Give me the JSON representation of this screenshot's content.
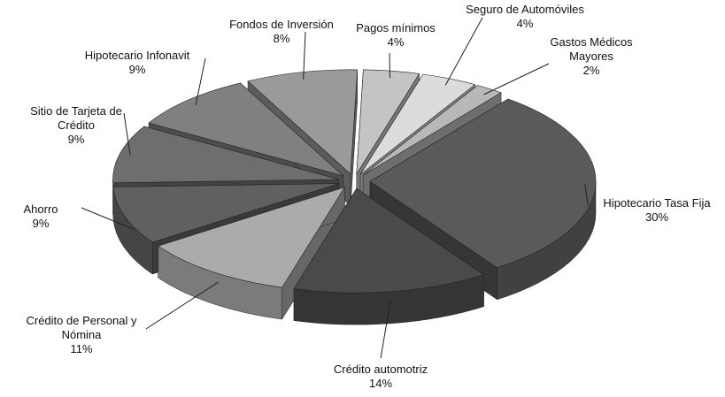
{
  "chart_data": {
    "type": "pie3d",
    "categories": [
      "Pagos mínimos",
      "Seguro de Automóviles",
      "Gastos Médicos Mayores",
      "Hipotecario Tasa Fija",
      "Crédito automotriz",
      "Crédito de Personal y Nómina",
      "Ahorro",
      "Sitio de Tarjeta de Crédito",
      "Hipotecario Infonavit",
      "Fondos de Inversión"
    ],
    "values": [
      4,
      4,
      2,
      30,
      14,
      11,
      9,
      9,
      9,
      8
    ],
    "value_labels": [
      "4%",
      "4%",
      "2%",
      "30%",
      "14%",
      "11%",
      "9%",
      "9%",
      "9%",
      "8%"
    ],
    "colors": [
      "#c4c4c4",
      "#dcdcdc",
      "#b8b8b8",
      "#5a5a5a",
      "#4a4a4a",
      "#ababab",
      "#606060",
      "#6e6e6e",
      "#808080",
      "#9a9a9a"
    ]
  }
}
